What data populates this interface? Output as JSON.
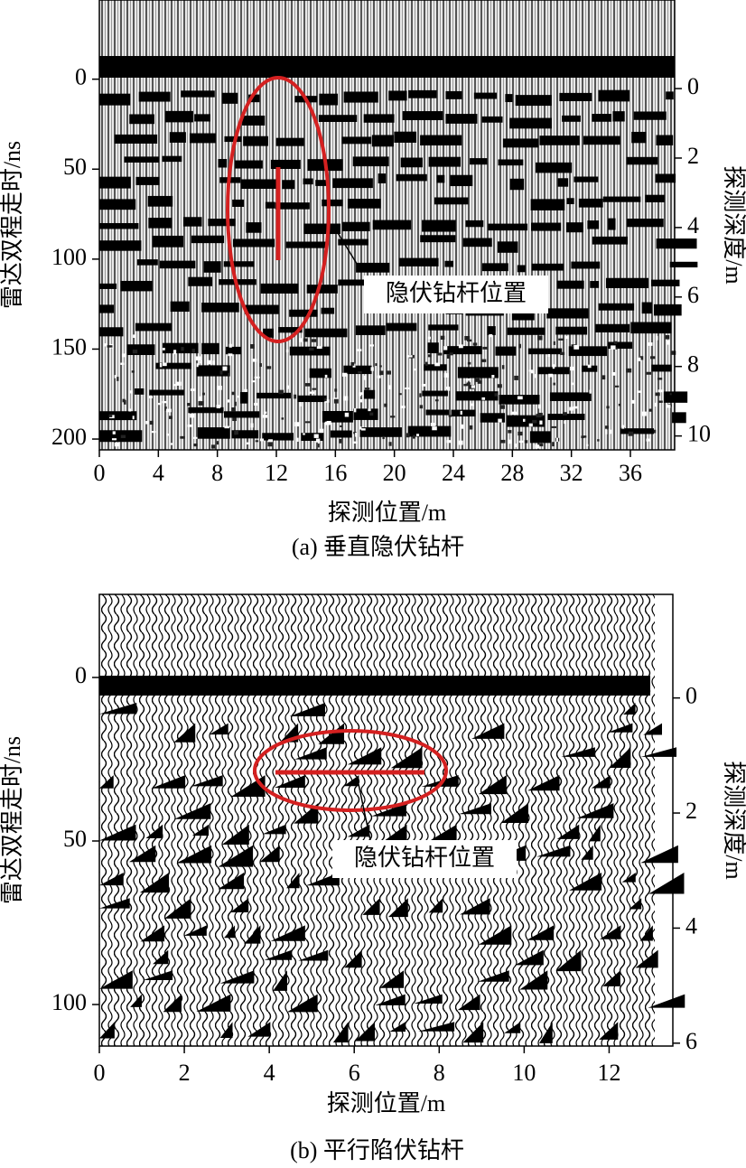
{
  "chart_data": [
    {
      "type": "radargram",
      "xlabel": "探测位置/m",
      "ylabel": "雷达双程走时/ns",
      "y2label": "探测深度/m",
      "caption": "(a)  垂直隐伏钻杆",
      "annotation": "隐伏钻杆位置",
      "xlim": [
        0,
        39
      ],
      "xticks": [
        0,
        4,
        8,
        12,
        16,
        20,
        24,
        28,
        32,
        36
      ],
      "ylim": [
        -44,
        206
      ],
      "yticks": [
        0,
        50,
        100,
        150,
        200
      ],
      "y_inverted": true,
      "y2lim": [
        -2.55,
        10.4
      ],
      "y2ticks": [
        0,
        2,
        4,
        6,
        8,
        10
      ]
    },
    {
      "type": "radargram",
      "xlabel": "探测位置/m",
      "ylabel": "雷达双程走时/ns",
      "y2label": "探测深度/m",
      "caption": "(b)  平行陷伏钻杆",
      "annotation": "隐伏钻杆位置",
      "xlim": [
        0,
        13.5
      ],
      "xticks": [
        0,
        2,
        4,
        6,
        8,
        10,
        12
      ],
      "ylim": [
        -25.4,
        112.7
      ],
      "yticks": [
        0,
        50,
        100
      ],
      "y_inverted": true,
      "y2lim": [
        -1.8,
        6.05
      ],
      "y2ticks": [
        0,
        2,
        4,
        6
      ]
    }
  ]
}
